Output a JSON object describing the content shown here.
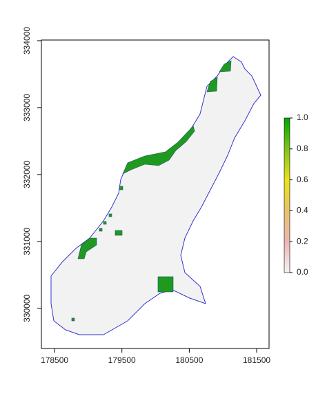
{
  "chart_data": {
    "type": "raster",
    "xlim": [
      178305,
      181684
    ],
    "xticks": [
      178500,
      179500,
      180500,
      181500
    ],
    "ylim": [
      329400,
      334010
    ],
    "yticks": [
      330000,
      331000,
      332000,
      333000,
      334000
    ],
    "zlim": [
      0,
      1
    ],
    "zticks": [
      {
        "value": 0,
        "label": "0.0"
      },
      0.2,
      0.4,
      0.6,
      0.8,
      {
        "value": 1,
        "label": "1.0"
      }
    ],
    "colorbar_colors": [
      "#f2f2f2",
      "#ebb6b0",
      "#e8c26b",
      "#e8e21a",
      "#7fc31c",
      "#00a600"
    ]
  }
}
